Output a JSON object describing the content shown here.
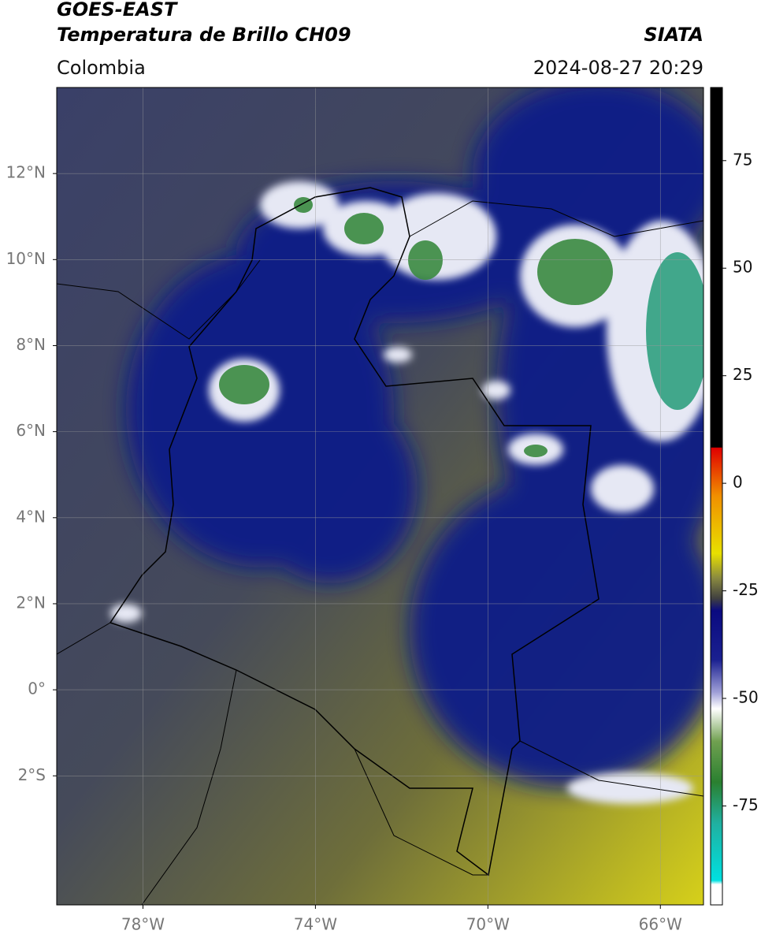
{
  "header": {
    "title": "GOES-EAST",
    "subtitle": "Temperatura de Brillo CH09",
    "source": "SIATA",
    "region": "Colombia",
    "datetime": "2024-08-27 20:29"
  },
  "map": {
    "xlim": [
      -80,
      -65
    ],
    "ylim": [
      -5,
      14
    ],
    "xticks": [
      {
        "value": -78,
        "label": "78°W"
      },
      {
        "value": -74,
        "label": "74°W"
      },
      {
        "value": -70,
        "label": "70°W"
      },
      {
        "value": -66,
        "label": "66°W"
      }
    ],
    "yticks": [
      {
        "value": 12,
        "label": "12°N"
      },
      {
        "value": 10,
        "label": "10°N"
      },
      {
        "value": 8,
        "label": "8°N"
      },
      {
        "value": 6,
        "label": "6°N"
      },
      {
        "value": 4,
        "label": "4°N"
      },
      {
        "value": 2,
        "label": "2°N"
      },
      {
        "value": 0,
        "label": "0°"
      },
      {
        "value": -2,
        "label": "2°S"
      }
    ]
  },
  "colorbar": {
    "lim": [
      -98,
      92
    ],
    "ticks": [
      75,
      50,
      25,
      0,
      -25,
      -50,
      -75
    ]
  }
}
